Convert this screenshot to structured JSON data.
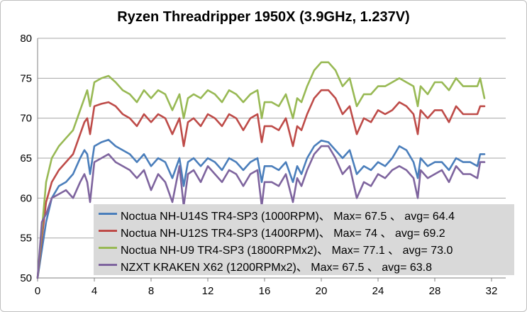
{
  "chart_data": {
    "type": "line",
    "title": "Ryzen Threadripper 1950X (3.9GHz, 1.237V)",
    "xlabel": "",
    "ylabel": "",
    "xlim": [
      0,
      33
    ],
    "ylim": [
      50,
      80
    ],
    "xticks": [
      0,
      4,
      8,
      12,
      16,
      20,
      24,
      28,
      32
    ],
    "yticks": [
      50,
      55,
      60,
      65,
      70,
      75,
      80
    ],
    "grid": true,
    "legend_position": "bottom-right",
    "series": [
      {
        "name": "Noctua NH-U14S TR4-SP3 (1000RPM)、 Max= 67.5 、 avg= 64.4",
        "color": "#4a7ebb",
        "x": [
          0,
          0.3,
          0.6,
          1,
          1.5,
          2,
          2.5,
          3,
          3.3,
          3.5,
          3.7,
          4,
          4.5,
          5,
          5.5,
          6,
          6.5,
          7,
          7.5,
          8,
          8.5,
          9,
          9.5,
          10,
          10.3,
          10.6,
          11,
          11.5,
          12,
          12.5,
          13,
          13.5,
          14,
          14.5,
          15,
          15.5,
          15.8,
          16,
          16.5,
          17,
          17.5,
          18,
          18.3,
          18.6,
          19,
          19.5,
          20,
          20.5,
          21,
          21.5,
          22,
          22.5,
          23,
          23.5,
          24,
          24.5,
          25,
          25.5,
          26,
          26.5,
          26.8,
          27,
          27.5,
          28,
          28.5,
          29,
          29.5,
          30,
          30.5,
          31,
          31.2,
          31.5
        ],
        "y": [
          50,
          53.5,
          57,
          60,
          61.5,
          62,
          63,
          65,
          66,
          65.5,
          63,
          66.5,
          67,
          67.3,
          66.5,
          66,
          65.5,
          64.5,
          65.5,
          64,
          65,
          64.5,
          62.5,
          65,
          61.5,
          64.5,
          65,
          64,
          65,
          64.5,
          63.5,
          65,
          64.5,
          63.5,
          64.5,
          65,
          62,
          64,
          64,
          63.5,
          64.5,
          62,
          64,
          63,
          65,
          66.5,
          67.2,
          67,
          66,
          65,
          66,
          63,
          64,
          63.5,
          64.5,
          64,
          65,
          66.5,
          66,
          64.5,
          62.5,
          65,
          64,
          64.5,
          64.5,
          63.5,
          65,
          64.5,
          64.5,
          64,
          65.5,
          65.5
        ]
      },
      {
        "name": "Noctua NH-U12S TR4-SP3 (1400RPM)、 Max= 74 、 avg= 69.2",
        "color": "#be4b48",
        "x": [
          0,
          0.3,
          0.6,
          1,
          1.5,
          2,
          2.5,
          3,
          3.3,
          3.5,
          3.7,
          4,
          4.5,
          5,
          5.5,
          6,
          6.5,
          7,
          7.5,
          8,
          8.5,
          9,
          9.5,
          10,
          10.3,
          10.6,
          11,
          11.5,
          12,
          12.5,
          13,
          13.5,
          14,
          14.5,
          15,
          15.5,
          15.8,
          16,
          16.5,
          17,
          17.5,
          18,
          18.3,
          18.6,
          19,
          19.5,
          20,
          20.5,
          21,
          21.5,
          22,
          22.5,
          23,
          23.5,
          24,
          24.5,
          25,
          25.5,
          26,
          26.5,
          26.8,
          27,
          27.5,
          28,
          28.5,
          29,
          29.5,
          30,
          30.5,
          31,
          31.2,
          31.5
        ],
        "y": [
          50,
          55,
          59.5,
          62,
          63.5,
          64.5,
          65.5,
          68,
          69.5,
          70,
          68,
          71.5,
          71.8,
          72,
          71.5,
          70.5,
          70,
          69,
          70.5,
          69.5,
          70.5,
          70,
          68,
          70,
          66.5,
          69.5,
          70,
          69,
          70.5,
          70,
          69,
          70.5,
          70,
          68.5,
          70,
          70.5,
          67,
          69,
          69,
          68.5,
          70,
          66.5,
          69,
          68.5,
          70.5,
          72.5,
          73.5,
          73.5,
          72.5,
          70.5,
          71.5,
          68,
          70,
          69.5,
          71,
          70.5,
          71,
          72,
          71.5,
          70.5,
          68,
          71,
          70,
          71,
          71,
          69.5,
          71.5,
          70.5,
          70.5,
          70.5,
          71.5,
          71.5
        ]
      },
      {
        "name": "Noctua NH-U9 TR4-SP3 (1800RPMx2)、 Max= 77.1 、 avg= 73.0",
        "color": "#98b954",
        "x": [
          0,
          0.3,
          0.6,
          1,
          1.5,
          2,
          2.5,
          3,
          3.3,
          3.5,
          3.7,
          4,
          4.5,
          5,
          5.5,
          6,
          6.5,
          7,
          7.5,
          8,
          8.5,
          9,
          9.5,
          10,
          10.3,
          10.6,
          11,
          11.5,
          12,
          12.5,
          13,
          13.5,
          14,
          14.5,
          15,
          15.5,
          15.8,
          16,
          16.5,
          17,
          17.5,
          18,
          18.3,
          18.6,
          19,
          19.5,
          20,
          20.5,
          21,
          21.5,
          22,
          22.5,
          23,
          23.5,
          24,
          24.5,
          25,
          25.5,
          26,
          26.5,
          26.8,
          27,
          27.5,
          28,
          28.5,
          29,
          29.5,
          30,
          30.5,
          31,
          31.2,
          31.5
        ],
        "y": [
          50,
          56,
          62,
          65,
          66.5,
          67.5,
          68.5,
          71,
          72.5,
          73.5,
          71.5,
          74.5,
          75,
          75.3,
          74.5,
          73.5,
          73,
          72,
          73.5,
          72.5,
          73.5,
          73,
          71,
          73,
          70,
          72.5,
          73,
          72.5,
          73.5,
          73,
          72,
          73.5,
          73,
          72,
          73,
          73.5,
          70,
          72,
          72,
          71.5,
          73,
          70,
          72.5,
          72,
          74,
          76,
          77,
          77,
          76,
          74,
          75,
          71.5,
          73,
          73,
          74,
          74,
          74.5,
          75,
          74.5,
          74,
          71.5,
          74,
          73,
          74.5,
          74.5,
          73.5,
          75,
          74,
          74,
          74,
          75,
          72.5
        ]
      },
      {
        "name": "NZXT KRAKEN X62 (1200RPMx2)、 Max= 67.5 、 avg= 63.8",
        "color": "#7e649e",
        "x": [
          0,
          0.3,
          0.6,
          1,
          1.5,
          2,
          2.5,
          3,
          3.3,
          3.5,
          3.7,
          4,
          4.5,
          5,
          5.5,
          6,
          6.5,
          7,
          7.5,
          8,
          8.5,
          9,
          9.5,
          10,
          10.3,
          10.6,
          11,
          11.5,
          12,
          12.5,
          13,
          13.5,
          14,
          14.5,
          15,
          15.5,
          15.8,
          16,
          16.5,
          17,
          17.5,
          18,
          18.3,
          18.6,
          19,
          19.5,
          20,
          20.5,
          21,
          21.5,
          22,
          22.5,
          23,
          23.5,
          24,
          24.5,
          25,
          25.5,
          26,
          26.5,
          26.8,
          27,
          27.5,
          28,
          28.5,
          29,
          29.5,
          30,
          30.5,
          31,
          31.2,
          31.5
        ],
        "y": [
          50,
          57,
          58,
          60,
          60.5,
          61,
          60,
          62,
          63,
          62,
          59.5,
          64.5,
          65,
          65.5,
          64.5,
          64,
          63.5,
          62.5,
          63.5,
          61,
          63,
          62,
          59.5,
          64,
          59,
          63,
          63.5,
          62,
          64,
          63,
          62,
          63.5,
          63,
          61.5,
          63,
          63.5,
          59,
          62,
          62,
          61.5,
          63,
          59.5,
          62.5,
          61.5,
          63.5,
          65.5,
          66.5,
          66.5,
          65,
          63,
          64,
          60,
          62,
          61.5,
          63,
          62.5,
          63.5,
          64,
          63.5,
          62.5,
          60,
          63.5,
          62.5,
          63,
          63.5,
          62,
          64,
          63,
          63,
          62.5,
          64.5,
          64.5
        ]
      }
    ]
  }
}
